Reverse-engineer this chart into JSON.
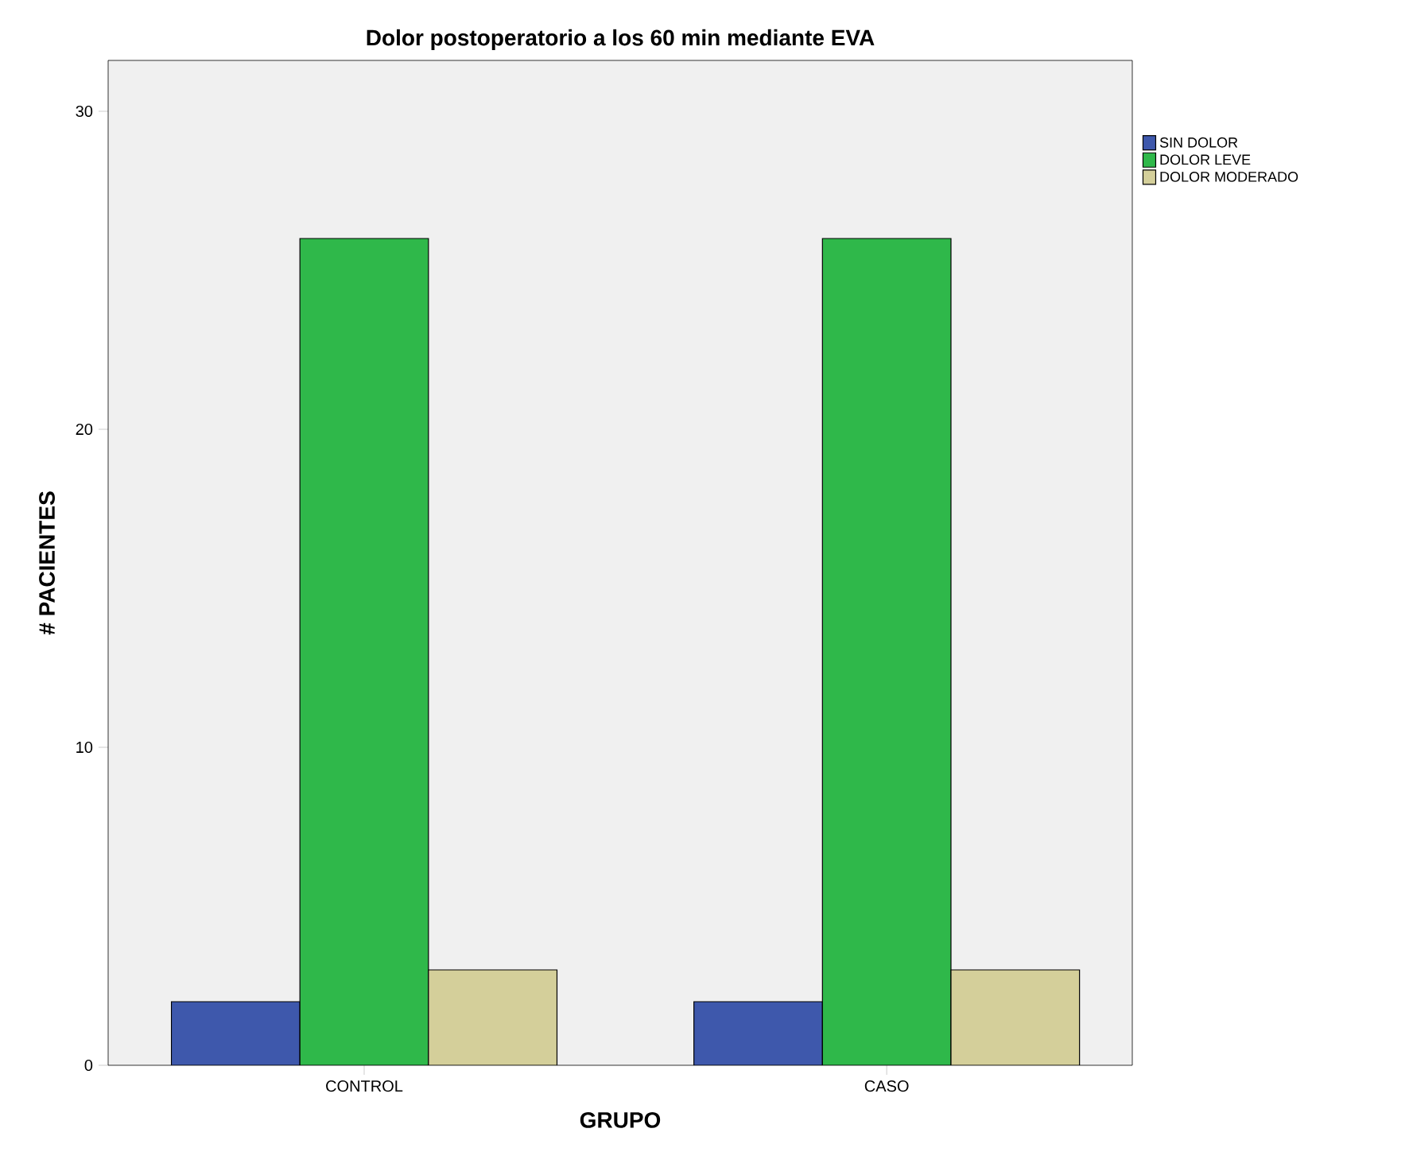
{
  "chart_data": {
    "type": "bar",
    "title": "Dolor postoperatorio a los 60 min mediante EVA",
    "xlabel": "GRUPO",
    "ylabel": "# PACIENTES",
    "categories": [
      "CONTROL",
      "CASO"
    ],
    "series": [
      {
        "name": "SIN DOLOR",
        "color": "#3e58ac",
        "values": [
          2,
          2
        ]
      },
      {
        "name": "DOLOR LEVE",
        "color": "#2fb84a",
        "values": [
          26,
          26
        ]
      },
      {
        "name": "DOLOR MODERADO",
        "color": "#d4cf9a",
        "values": [
          3,
          3
        ]
      }
    ],
    "ylim": [
      0,
      31.6
    ],
    "yticks": [
      0,
      10,
      20,
      30
    ],
    "grid": false,
    "legend": "top right"
  }
}
